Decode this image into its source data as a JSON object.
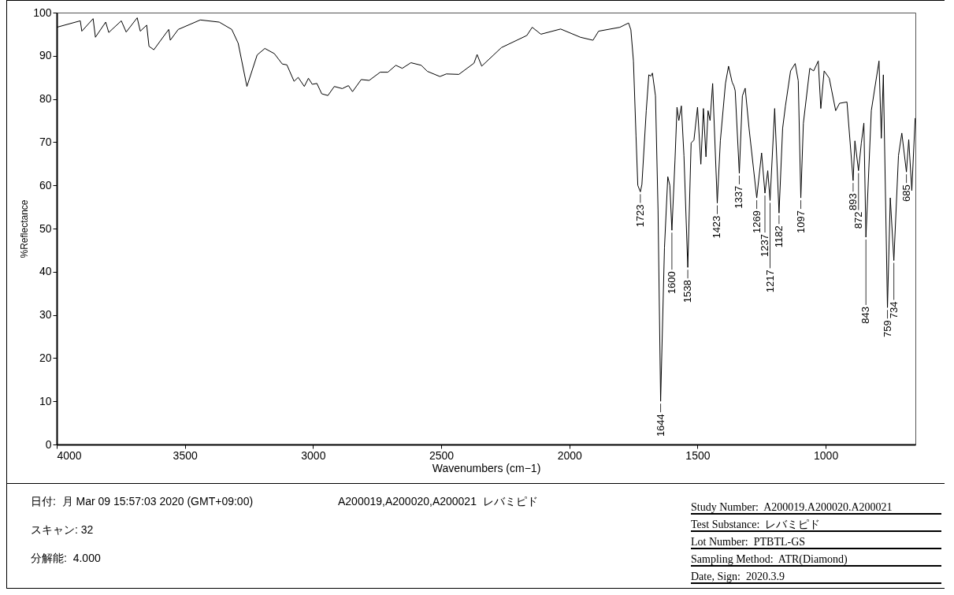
{
  "chart_data": {
    "type": "line",
    "xlabel": "Wavenumbers (cm−1)",
    "ylabel": "%Reflectance",
    "xlim": [
      4000,
      650
    ],
    "ylim": [
      0,
      100
    ],
    "xticks": [
      4000,
      3500,
      3000,
      2500,
      2000,
      1500,
      1000
    ],
    "yticks": [
      0,
      10,
      20,
      30,
      40,
      50,
      60,
      70,
      80,
      90,
      100
    ],
    "grid": false,
    "series": [
      {
        "color": "#000000",
        "x": [
          4000,
          3908,
          3902,
          3858,
          3849,
          3809,
          3797,
          3748,
          3729,
          3686,
          3674,
          3649,
          3640,
          3621,
          3594,
          3563,
          3557,
          3526,
          3440,
          3366,
          3317,
          3292,
          3258,
          3218,
          3188,
          3151,
          3120,
          3102,
          3074,
          3058,
          3034,
          3018,
          3003,
          2985,
          2966,
          2942,
          2917,
          2886,
          2862,
          2846,
          2812,
          2781,
          2738,
          2708,
          2677,
          2652,
          2618,
          2578,
          2554,
          2505,
          2480,
          2431,
          2372,
          2360,
          2342,
          2265,
          2166,
          2145,
          2111,
          2034,
          1957,
          1908,
          1886,
          1803,
          1769,
          1760,
          1750,
          1740,
          1733,
          1723,
          1717,
          1700,
          1690,
          1682,
          1676,
          1664,
          1654,
          1644,
          1629,
          1616,
          1608,
          1600,
          1588,
          1580,
          1573,
          1563,
          1553,
          1538,
          1525,
          1514,
          1500,
          1487,
          1477,
          1467,
          1459,
          1451,
          1441,
          1423,
          1411,
          1391,
          1379,
          1365,
          1358,
          1353,
          1337,
          1325,
          1314,
          1299,
          1269,
          1250,
          1237,
          1226,
          1217,
          1199,
          1182,
          1168,
          1157,
          1137,
          1119,
          1107,
          1097,
          1087,
          1062,
          1047,
          1029,
          1019,
          1006,
          986,
          961,
          946,
          917,
          893,
          886,
          872,
          861,
          851,
          843,
          822,
          792,
          783,
          775,
          759,
          748,
          734,
          716,
          703,
          685,
          676,
          664,
          651
        ],
        "values": [
          96.6,
          98.1,
          95.7,
          98.6,
          94.3,
          97.8,
          95.4,
          98.1,
          95.5,
          98.8,
          95.7,
          97.1,
          92.2,
          91.4,
          93.6,
          96.1,
          93.6,
          96.1,
          98.3,
          97.8,
          96.1,
          92.9,
          82.9,
          90.2,
          91.7,
          90.5,
          88.1,
          87.9,
          84.1,
          85.0,
          82.9,
          84.8,
          83.4,
          83.6,
          81.2,
          80.8,
          82.9,
          82.4,
          83.1,
          81.7,
          84.5,
          84.3,
          86.2,
          86.2,
          87.8,
          87.1,
          88.4,
          87.8,
          86.4,
          85.2,
          85.8,
          85.7,
          88.3,
          90.3,
          87.6,
          91.9,
          94.7,
          96.6,
          95.0,
          96.2,
          94.3,
          93.6,
          95.7,
          96.6,
          97.6,
          96.0,
          88.8,
          71.5,
          60.0,
          58.5,
          60.2,
          77.3,
          85.6,
          85.3,
          86.0,
          80.7,
          54.2,
          10.0,
          45.5,
          62.0,
          60.0,
          49.6,
          65.7,
          78.1,
          75.0,
          78.4,
          66.9,
          41.0,
          69.8,
          70.5,
          78.1,
          64.9,
          77.8,
          66.6,
          77.3,
          75.0,
          83.6,
          55.9,
          70.3,
          83.6,
          87.6,
          83.9,
          83.0,
          81.9,
          62.8,
          80.7,
          82.5,
          73.2,
          57.1,
          67.5,
          58.2,
          63.4,
          56.5,
          77.8,
          53.6,
          73.2,
          78.4,
          86.5,
          88.2,
          84.2,
          57.1,
          74.4,
          87.1,
          86.5,
          88.8,
          77.8,
          86.5,
          84.8,
          77.3,
          79.0,
          79.3,
          61.1,
          70.3,
          63.4,
          69.8,
          74.4,
          48.0,
          77.3,
          88.8,
          70.9,
          85.6,
          31.7,
          57.1,
          42.6,
          66.9,
          72.1,
          63.1,
          70.6,
          58.8,
          75.5
        ]
      }
    ],
    "annotations": [
      {
        "text": "1723",
        "x": 1723,
        "y": 58.5
      },
      {
        "text": "1644",
        "x": 1644,
        "y": 10.0
      },
      {
        "text": "1600",
        "x": 1600,
        "y": 49.6
      },
      {
        "text": "1538",
        "x": 1538,
        "y": 41.0
      },
      {
        "text": "1423",
        "x": 1423,
        "y": 55.9
      },
      {
        "text": "1337",
        "x": 1337,
        "y": 62.8
      },
      {
        "text": "1269",
        "x": 1269,
        "y": 57.1
      },
      {
        "text": "1237",
        "x": 1237,
        "y": 58.2
      },
      {
        "text": "1217",
        "x": 1217,
        "y": 56.5
      },
      {
        "text": "1182",
        "x": 1182,
        "y": 53.6
      },
      {
        "text": "1097",
        "x": 1097,
        "y": 57.1
      },
      {
        "text": "893",
        "x": 893,
        "y": 61.1
      },
      {
        "text": "872",
        "x": 872,
        "y": 63.4
      },
      {
        "text": "843",
        "x": 843,
        "y": 48.0
      },
      {
        "text": "759",
        "x": 759,
        "y": 31.7
      },
      {
        "text": "734",
        "x": 734,
        "y": 42.6
      },
      {
        "text": "685",
        "x": 685,
        "y": 63.1
      },
      "日付:  月 Mar 09 15:57:03 2020 (GMT+09:00)",
      "A200019,A200020,A200021  レバミピド",
      "スキャン: 32",
      "分解能:  4.000",
      "Study Number:  A200019.A200020.A200021",
      "Test Substance:  レバミピド",
      "Lot Number:  PTBTL-GS",
      "Sampling Method:  ATR(Diamond)",
      "Date, Sign:  2020.3.9"
    ]
  }
}
